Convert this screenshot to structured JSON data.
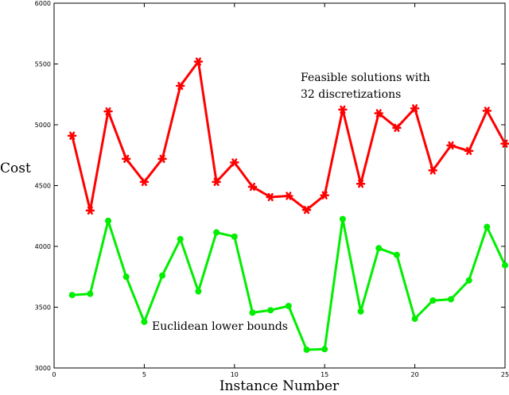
{
  "chart_data": {
    "type": "line",
    "title": "",
    "xlabel": "Instance Number",
    "ylabel": "Cost",
    "xlim": [
      0,
      25
    ],
    "ylim": [
      3000,
      6000
    ],
    "grid": false,
    "x_ticks": [
      "0",
      "5",
      "10",
      "15",
      "20",
      "25"
    ],
    "y_ticks": [
      "3000",
      "3500",
      "4000",
      "4500",
      "5000",
      "5500",
      "6000"
    ],
    "x": [
      1,
      2,
      3,
      4,
      5,
      6,
      7,
      8,
      9,
      10,
      11,
      12,
      13,
      14,
      15,
      16,
      17,
      18,
      19,
      20,
      21,
      22,
      23,
      24,
      25
    ],
    "series": [
      {
        "annotation_lines": [
          "Feasible solutions with",
          "32 discretizations"
        ],
        "color": "#ff0000",
        "marker": "star",
        "values": [
          4910,
          4295,
          5110,
          4720,
          4530,
          4720,
          5320,
          5520,
          4530,
          4690,
          4490,
          4405,
          4415,
          4300,
          4420,
          5125,
          4515,
          5095,
          4975,
          5135,
          4625,
          4830,
          4785,
          5115,
          4845
        ]
      },
      {
        "annotation_lines": [
          "Euclidean lower bounds"
        ],
        "color": "#00ee00",
        "marker": "circle",
        "values": [
          3600,
          3610,
          4210,
          3750,
          3380,
          3760,
          4060,
          3630,
          4115,
          4080,
          3455,
          3475,
          3510,
          3150,
          3155,
          4225,
          3465,
          3985,
          3930,
          3405,
          3555,
          3565,
          3720,
          4160,
          3845
        ]
      }
    ]
  }
}
